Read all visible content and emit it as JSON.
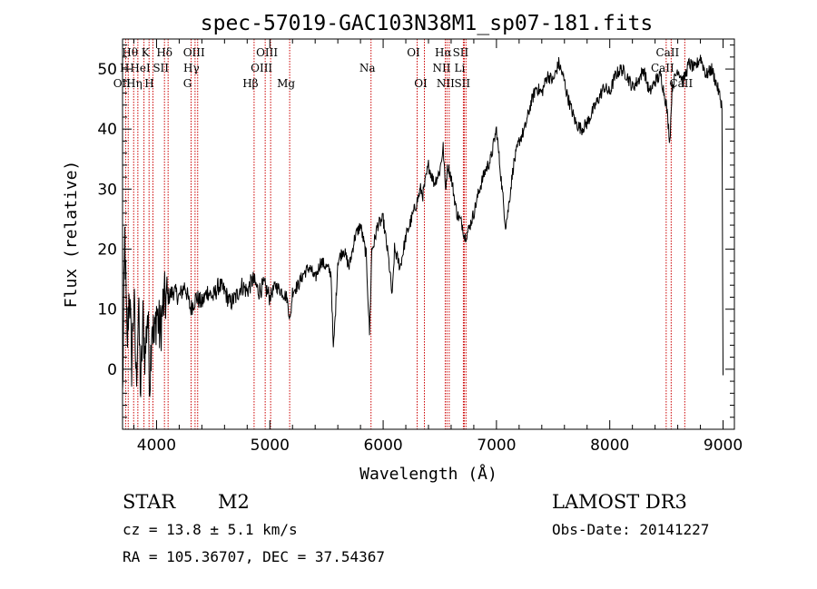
{
  "chart_data": {
    "type": "line",
    "title": "spec-57019-GAC103N38M1_sp07-181.fits",
    "xlabel": "Wavelength (Å)",
    "ylabel": "Flux (relative)",
    "xlim": [
      3700,
      9100
    ],
    "ylim": [
      -10,
      55
    ],
    "xticks": [
      4000,
      5000,
      6000,
      7000,
      8000,
      9000
    ],
    "xtick_labels": [
      "4000",
      "5000",
      "6000",
      "7000",
      "8000",
      "9000"
    ],
    "yticks": [
      0,
      10,
      20,
      30,
      40,
      50
    ],
    "ytick_labels": [
      "0",
      "10",
      "20",
      "30",
      "40",
      "50"
    ],
    "series": [
      {
        "name": "spectrum",
        "x": [
          3700,
          3720,
          3740,
          3760,
          3780,
          3800,
          3820,
          3840,
          3860,
          3880,
          3900,
          3920,
          3940,
          3960,
          3980,
          4000,
          4030,
          4060,
          4100,
          4150,
          4200,
          4250,
          4300,
          4350,
          4400,
          4450,
          4500,
          4550,
          4600,
          4650,
          4700,
          4750,
          4800,
          4850,
          4900,
          4950,
          5000,
          5050,
          5100,
          5150,
          5180,
          5200,
          5250,
          5300,
          5350,
          5400,
          5450,
          5500,
          5540,
          5560,
          5580,
          5600,
          5650,
          5700,
          5750,
          5800,
          5850,
          5880,
          5900,
          5920,
          5950,
          6000,
          6050,
          6080,
          6100,
          6150,
          6200,
          6250,
          6300,
          6330,
          6350,
          6400,
          6450,
          6500,
          6530,
          6550,
          6570,
          6600,
          6650,
          6700,
          6720,
          6750,
          6800,
          6850,
          6900,
          6950,
          7000,
          7050,
          7080,
          7100,
          7150,
          7200,
          7250,
          7300,
          7350,
          7400,
          7450,
          7500,
          7550,
          7600,
          7620,
          7650,
          7700,
          7750,
          7800,
          7850,
          7900,
          7950,
          8000,
          8050,
          8100,
          8150,
          8200,
          8250,
          8300,
          8350,
          8400,
          8450,
          8500,
          8530,
          8550,
          8600,
          8650,
          8700,
          8750,
          8800,
          8850,
          8900,
          8950,
          8990,
          9000
        ],
        "y": [
          -5,
          22,
          3,
          14,
          1,
          12,
          -2,
          10,
          -4,
          8,
          2,
          10,
          -2,
          9,
          4,
          10,
          6,
          11,
          12,
          13,
          12,
          14,
          10,
          12,
          11,
          13,
          12,
          14,
          13,
          11,
          12,
          14,
          13,
          15,
          13,
          14,
          12,
          14,
          13,
          12,
          8,
          13,
          14,
          16,
          17,
          15,
          18,
          17,
          16,
          3,
          10,
          18,
          20,
          17,
          22,
          24,
          19,
          6,
          20,
          21,
          24,
          25,
          18,
          12,
          20,
          17,
          22,
          25,
          28,
          30,
          29,
          34,
          31,
          33,
          37,
          30,
          34,
          32,
          26,
          24,
          22,
          23,
          26,
          30,
          33,
          35,
          40,
          30,
          24,
          26,
          34,
          38,
          40,
          44,
          47,
          46,
          49,
          48,
          51,
          48,
          46,
          44,
          41,
          40,
          41,
          43,
          45,
          47,
          46,
          49,
          50,
          49,
          47,
          48,
          50,
          46,
          48,
          49,
          44,
          38,
          47,
          50,
          48,
          51,
          50,
          52,
          49,
          50,
          47,
          44,
          -1
        ]
      }
    ],
    "lines": [
      {
        "label": "Hθ",
        "wl": 3798,
        "row": 1
      },
      {
        "label": "OII",
        "wl": 3727,
        "row": 3
      },
      {
        "label": "H",
        "wl": 3750,
        "row": 2
      },
      {
        "label": "Hη",
        "wl": 3835,
        "row": 3
      },
      {
        "label": "K",
        "wl": 3934,
        "row": 1
      },
      {
        "label": "HeI",
        "wl": 3889,
        "row": 2
      },
      {
        "label": "H",
        "wl": 3968,
        "row": 3
      },
      {
        "label": "SII",
        "wl": 4070,
        "row": 2
      },
      {
        "label": "Hδ",
        "wl": 4102,
        "row": 1
      },
      {
        "label": "OIII",
        "wl": 4363,
        "row": 1
      },
      {
        "label": "Hγ",
        "wl": 4340,
        "row": 2
      },
      {
        "label": "G",
        "wl": 4305,
        "row": 3
      },
      {
        "label": "Hβ",
        "wl": 4861,
        "row": 3
      },
      {
        "label": "OIII",
        "wl": 5007,
        "row": 1
      },
      {
        "label": "OIII",
        "wl": 4959,
        "row": 2
      },
      {
        "label": "Mg",
        "wl": 5175,
        "row": 3
      },
      {
        "label": "Na",
        "wl": 5893,
        "row": 2
      },
      {
        "label": "OI",
        "wl": 6300,
        "row": 1
      },
      {
        "label": "OI",
        "wl": 6364,
        "row": 3
      },
      {
        "label": "Hα",
        "wl": 6563,
        "row": 1
      },
      {
        "label": "NII",
        "wl": 6548,
        "row": 2
      },
      {
        "label": "NII",
        "wl": 6583,
        "row": 3
      },
      {
        "label": "SII",
        "wl": 6716,
        "row": 1
      },
      {
        "label": "Li",
        "wl": 6708,
        "row": 2
      },
      {
        "label": "SII",
        "wl": 6731,
        "row": 3
      },
      {
        "label": "CaII",
        "wl": 8542,
        "row": 1
      },
      {
        "label": "CaII",
        "wl": 8498,
        "row": 2
      },
      {
        "label": "CaII",
        "wl": 8662,
        "row": 3
      }
    ]
  },
  "info": {
    "class": "STAR",
    "subclass": "M2",
    "survey": "LAMOST DR3",
    "cz": "cz = 13.8 ± 5.1 km/s",
    "obs_date": "Obs-Date: 20141227",
    "coords": "RA = 105.36707, DEC =  37.54367"
  },
  "colors": {
    "spectrum": "#000000",
    "lines": "#cc0000",
    "axes": "#000000"
  }
}
